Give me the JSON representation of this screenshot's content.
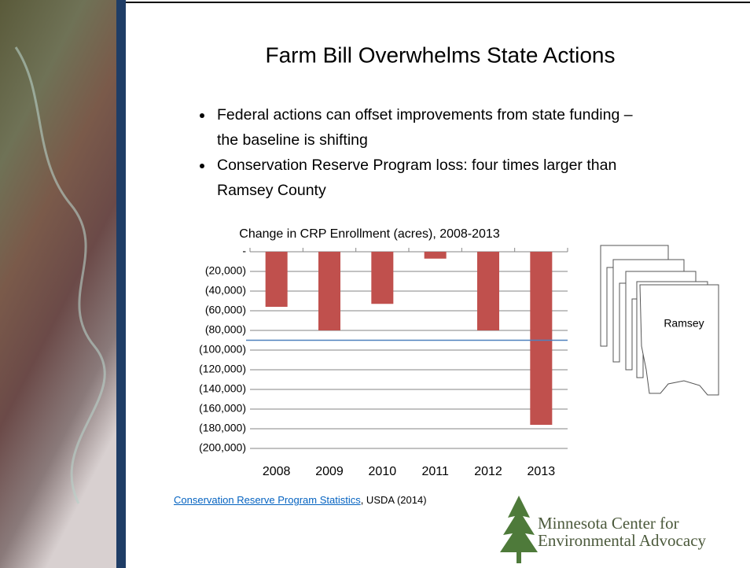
{
  "title": "Farm Bill Overwhelms State Actions",
  "bullets": [
    "Federal actions can offset improvements from state funding – the baseline is shifting",
    "Conservation Reserve Program loss: four times larger than Ramsey County"
  ],
  "chart_data": {
    "type": "bar",
    "title": "Change in CRP Enrollment (acres), 2008-2013",
    "categories": [
      "2008",
      "2009",
      "2010",
      "2011",
      "2012",
      "2013"
    ],
    "values": [
      -56000,
      -80000,
      -53000,
      -7000,
      -80000,
      -176000
    ],
    "color": "#c0504d",
    "ylim": [
      -200000,
      0
    ],
    "yticks": [
      {
        "value": 0,
        "label": "-"
      },
      {
        "value": -20000,
        "label": "(20,000)"
      },
      {
        "value": -40000,
        "label": "(40,000)"
      },
      {
        "value": -60000,
        "label": "(60,000)"
      },
      {
        "value": -80000,
        "label": "(80,000)"
      },
      {
        "value": -100000,
        "label": "(100,000)"
      },
      {
        "value": -120000,
        "label": "(120,000)"
      },
      {
        "value": -140000,
        "label": "(140,000)"
      },
      {
        "value": -160000,
        "label": "(160,000)"
      },
      {
        "value": -180000,
        "label": "(180,000)"
      },
      {
        "value": -200000,
        "label": "(200,000)"
      }
    ],
    "grid": true,
    "reference_line": {
      "value": -90000,
      "color": "#4f81bd"
    }
  },
  "map_label": "Ramsey",
  "source": {
    "link": "Conservation Reserve Program Statistics",
    "text": ", USDA (2014)"
  },
  "logo": {
    "line1": "Minnesota Center for",
    "line2": "Environmental Advocacy"
  }
}
